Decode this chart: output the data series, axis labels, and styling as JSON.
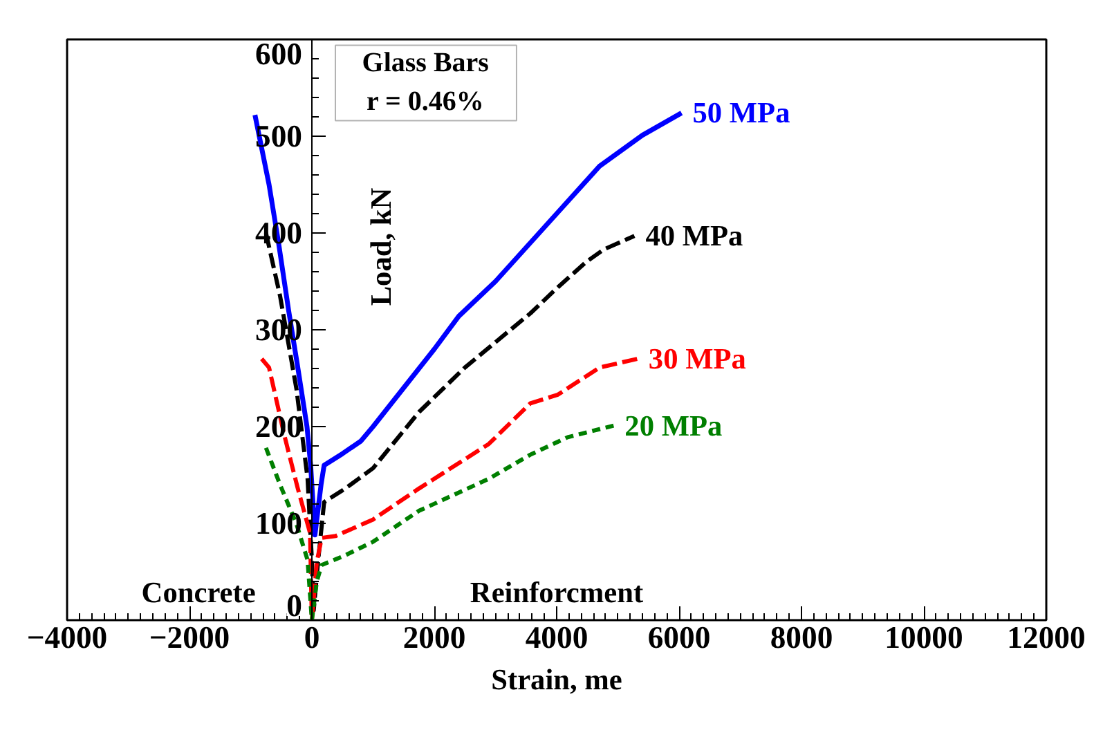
{
  "chart_data": {
    "type": "line",
    "xlabel": "Strain, me",
    "ylabel": "Load, kN",
    "annotations": [
      "Glass Bars",
      "r = 0.46%",
      "Concrete",
      "Reinforcment"
    ],
    "xlim": [
      -4000,
      12000
    ],
    "xticks": [
      -4000,
      -2000,
      0,
      2000,
      4000,
      6000,
      8000,
      10000,
      12000
    ],
    "ylim": [
      0,
      600
    ],
    "yticks": [
      0,
      100,
      200,
      300,
      400,
      500,
      600
    ],
    "grid": false,
    "marker": "none",
    "series": [
      {
        "name": "50 MPa",
        "color": "#0000ff",
        "line_style": "solid",
        "x": [
          -930,
          -700,
          -545,
          -380,
          -230,
          -80,
          -20,
          50,
          150,
          200,
          500,
          800,
          1000,
          1500,
          2000,
          2400,
          3000,
          3500,
          4000,
          4700,
          5400,
          6040
        ],
        "values": [
          522,
          450,
          390,
          320,
          261,
          200,
          160,
          88,
          140,
          160,
          172,
          185,
          200,
          240,
          280,
          314,
          350,
          385,
          420,
          469,
          501,
          524
        ]
      },
      {
        "name": "40 MPa",
        "color": "#000000",
        "line_style": "dashed",
        "x": [
          -750,
          -520,
          -250,
          -70,
          0,
          30,
          100,
          200,
          545,
          1000,
          1750,
          2500,
          3570,
          4020,
          4480,
          4770,
          5270
        ],
        "values": [
          400,
          335,
          238,
          146,
          62,
          10,
          60,
          122,
          136,
          157,
          215,
          261,
          317,
          344,
          370,
          383,
          397
        ]
      },
      {
        "name": "30 MPa",
        "color": "#ff0000",
        "line_style": "dashed",
        "x": [
          -820,
          -700,
          -450,
          -230,
          -30,
          0,
          80,
          160,
          390,
          1000,
          1750,
          2890,
          3570,
          4020,
          4700,
          5320
        ],
        "values": [
          270,
          261,
          191,
          136,
          90,
          0,
          60,
          85,
          87,
          104,
          136,
          182,
          224,
          233,
          261,
          270
        ]
      },
      {
        "name": "20 MPa",
        "color": "#007f00",
        "line_style": "dotted",
        "x": [
          -750,
          -520,
          -250,
          -70,
          0,
          80,
          160,
          545,
          1000,
          1750,
          2890,
          3570,
          4180,
          4930
        ],
        "values": [
          178,
          140,
          99,
          62,
          0,
          40,
          57,
          67,
          81,
          113,
          146,
          171,
          189,
          201
        ]
      }
    ]
  }
}
